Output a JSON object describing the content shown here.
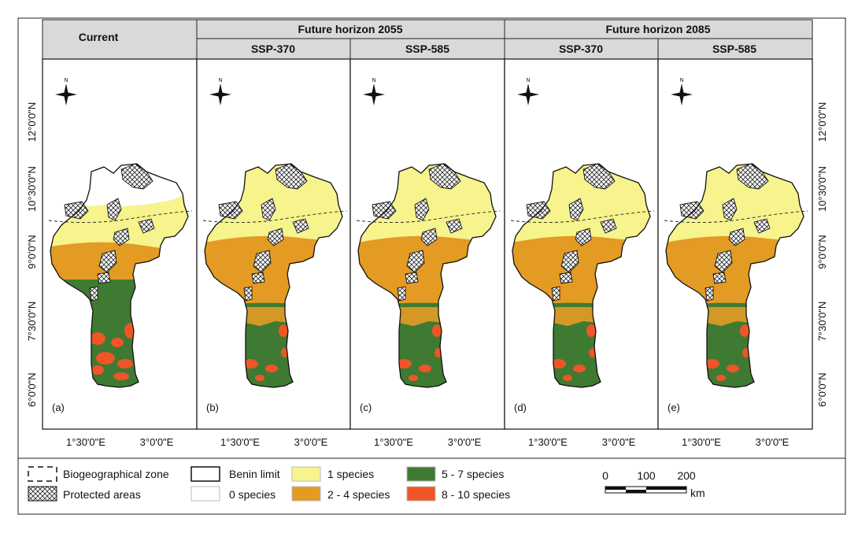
{
  "header": {
    "current": "Current",
    "future_2055": "Future horizon 2055",
    "future_2085": "Future horizon 2085",
    "ssp370": "SSP-370",
    "ssp585": "SSP-585"
  },
  "panels": [
    {
      "label": "(a)",
      "scenario": "current"
    },
    {
      "label": "(b)",
      "scenario": "2055-ssp370"
    },
    {
      "label": "(c)",
      "scenario": "2055-ssp585"
    },
    {
      "label": "(d)",
      "scenario": "2085-ssp370"
    },
    {
      "label": "(e)",
      "scenario": "2085-ssp585"
    }
  ],
  "axes": {
    "lat_ticks": [
      "12°0'0\"N",
      "10°30'0\"N",
      "9°0'0\"N",
      "7°30'0\"N",
      "6°0'0\"N"
    ],
    "lon_ticks": [
      "1°30'0\"E",
      "3°0'0\"E"
    ]
  },
  "north_arrow_label": "N",
  "legend": {
    "biogeographical_zone": "Biogeographical zone",
    "protected_areas": "Protected areas",
    "benin_limit": "Benin limit",
    "zero_species": "0  species",
    "one_species": "1  species",
    "two_four": "2 - 4 species",
    "five_seven": "5 - 7 species",
    "eight_ten": "8 - 10 species"
  },
  "scale_bar": {
    "ticks": [
      "0",
      "100",
      "200"
    ],
    "unit": "km"
  },
  "colors": {
    "zero": "#ffffff",
    "one": "#f7f38d",
    "two_four": "#e39b24",
    "five_seven": "#3f7a33",
    "eight_ten": "#ef5526",
    "header_bg": "#d9d9d9"
  }
}
